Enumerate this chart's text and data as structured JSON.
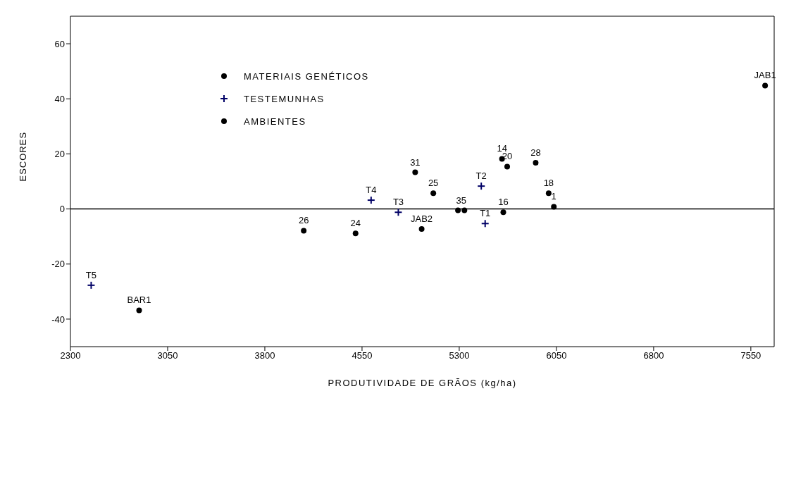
{
  "chart_data": {
    "type": "scatter",
    "xlabel": "PRODUTIVIDADE DE GRÃOS (kg/ha)",
    "ylabel": "ESCORES",
    "xlim": [
      2300,
      7730
    ],
    "xticks": [
      2300,
      3050,
      3800,
      4550,
      5300,
      6050,
      6800,
      7550
    ],
    "ylim": [
      -50,
      70
    ],
    "yticks": [
      -40,
      -20,
      0,
      20,
      40,
      60
    ],
    "grid": false,
    "legend": "top left",
    "ref_lines": [
      {
        "axis": "y",
        "value": 0,
        "color": "#000000"
      }
    ],
    "series": [
      {
        "name": "MATERIAIS GENÉTICOS",
        "color": "#000000",
        "marker": "circle",
        "x": [
          4960,
          5100,
          4100,
          4500,
          5290,
          5340,
          5640,
          5630,
          5670,
          5890,
          5990,
          6030
        ],
        "values": [
          13.3,
          5.7,
          -7.9,
          -8.9,
          -0.5,
          -0.5,
          -1.2,
          18.2,
          15.4,
          16.8,
          5.7,
          0.8
        ]
      },
      {
        "name": "TESTEMUNHAS",
        "color": "#000066",
        "marker": "cross",
        "x": [
          5470,
          5500,
          4830,
          4620,
          2460
        ],
        "values": [
          8.3,
          -5.3,
          -1.2,
          3.2,
          -27.7
        ]
      },
      {
        "name": "AMBIENTES",
        "color": "#000000",
        "marker": "circle",
        "x": [
          5010,
          2830,
          7660
        ],
        "values": [
          -7.3,
          -36.8,
          44.8
        ]
      }
    ],
    "annotations": [
      {
        "text": "31",
        "x": 4960,
        "y": 13.3
      },
      {
        "text": "25",
        "x": 5100,
        "y": 5.7
      },
      {
        "text": "26",
        "x": 4100,
        "y": -7.9
      },
      {
        "text": "24",
        "x": 4500,
        "y": -8.9
      },
      {
        "text": "35",
        "x": 5315,
        "y": -0.5
      },
      {
        "text": "16",
        "x": 5640,
        "y": -1.2
      },
      {
        "text": "14",
        "x": 5630,
        "y": 18.2
      },
      {
        "text": "20",
        "x": 5670,
        "y": 15.4
      },
      {
        "text": "28",
        "x": 5890,
        "y": 16.8
      },
      {
        "text": "18",
        "x": 5990,
        "y": 5.7
      },
      {
        "text": "1",
        "x": 6030,
        "y": 0.8
      },
      {
        "text": "T2",
        "x": 5470,
        "y": 8.3
      },
      {
        "text": "T1",
        "x": 5500,
        "y": -5.3
      },
      {
        "text": "T3",
        "x": 4830,
        "y": -1.2
      },
      {
        "text": "T4",
        "x": 4620,
        "y": 3.2
      },
      {
        "text": "T5",
        "x": 2460,
        "y": -27.7
      },
      {
        "text": "JAB2",
        "x": 5010,
        "y": -7.3
      },
      {
        "text": "BAR1",
        "x": 2830,
        "y": -36.8
      },
      {
        "text": "JAB1",
        "x": 7660,
        "y": 44.8
      }
    ]
  }
}
